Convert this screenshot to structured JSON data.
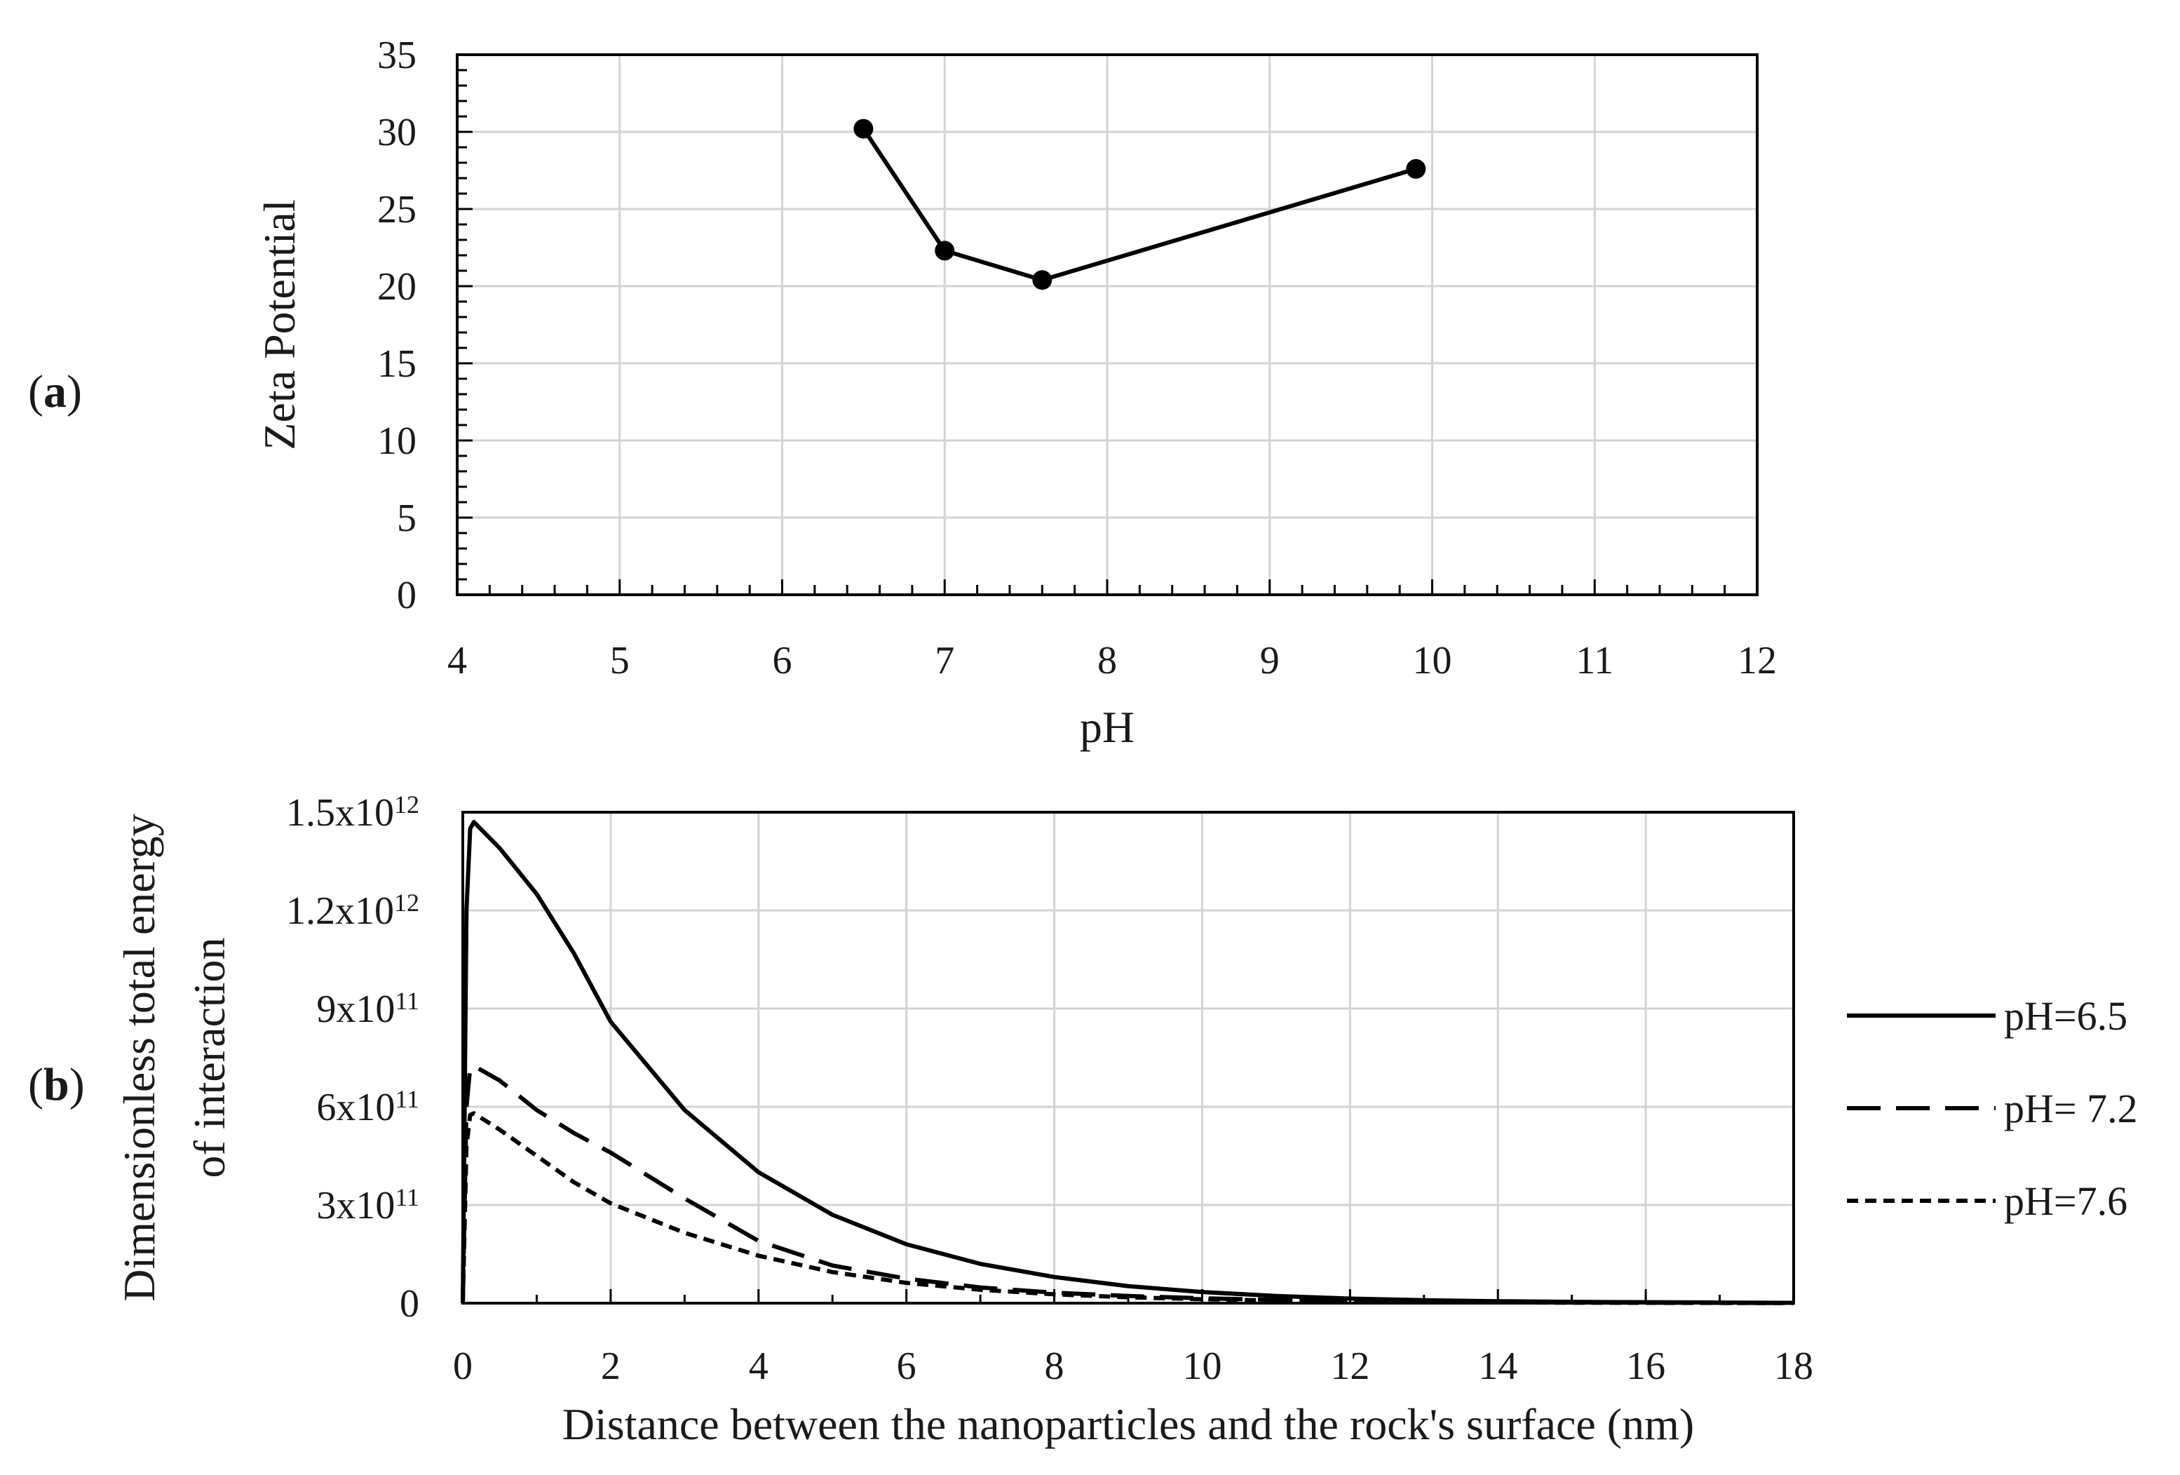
{
  "panels": {
    "a": {
      "prefix": "(",
      "letter": "a",
      "suffix": ")"
    },
    "b": {
      "prefix": "(",
      "letter": "b",
      "suffix": ")"
    }
  },
  "chart_data": [
    {
      "id": "a",
      "type": "line",
      "title": "",
      "xlabel": "pH",
      "ylabel": "Zeta Potential",
      "xlim": [
        4,
        12
      ],
      "ylim": [
        0,
        35
      ],
      "xticks": [
        4,
        5,
        6,
        7,
        8,
        9,
        10,
        11,
        12
      ],
      "yticks": [
        0,
        5,
        10,
        15,
        20,
        25,
        30,
        35
      ],
      "x_minor_step": 0.2,
      "y_minor_step": 1,
      "grid": true,
      "series": [
        {
          "name": "Zeta Potential",
          "x": [
            6.5,
            7.0,
            7.6,
            9.9
          ],
          "y": [
            30.2,
            22.3,
            20.4,
            27.6
          ],
          "color": "#000000",
          "markers": true
        }
      ]
    },
    {
      "id": "b",
      "type": "line",
      "title": "",
      "xlabel": "Distance between the nanoparticles and the rock's surface (nm)",
      "ylabel_lines": [
        "Dimensionless total energy",
        "of interaction"
      ],
      "xlim": [
        0,
        18
      ],
      "ylim": [
        0,
        1500000000000
      ],
      "xticks": [
        0,
        2,
        4,
        6,
        8,
        10,
        12,
        14,
        16,
        18
      ],
      "yticks": [
        {
          "value": 0,
          "base": "0",
          "exp": ""
        },
        {
          "value": 300000000000,
          "base": "3x10",
          "exp": "11"
        },
        {
          "value": 600000000000,
          "base": "6x10",
          "exp": "11"
        },
        {
          "value": 900000000000,
          "base": "9x10",
          "exp": "11"
        },
        {
          "value": 1200000000000,
          "base": "1.2x10",
          "exp": "12"
        },
        {
          "value": 1500000000000,
          "base": "1.5x10",
          "exp": "12"
        }
      ],
      "x_minor_step": 1,
      "grid": true,
      "legend_position": "right",
      "series": [
        {
          "name": "pH=6.5",
          "dash": "solid",
          "color": "#000000",
          "x": [
            0,
            0.05,
            0.1,
            0.15,
            0.5,
            1,
            1.5,
            2,
            3,
            4,
            5,
            6,
            7,
            8,
            9,
            10,
            11,
            12,
            13,
            14,
            15,
            16,
            17,
            18
          ],
          "y": [
            0,
            1200000000000.0,
            1450000000000.0,
            1470000000000.0,
            1390000000000.0,
            1250000000000.0,
            1070000000000.0,
            860000000000.0,
            590000000000.0,
            400000000000.0,
            270000000000.0,
            180000000000.0,
            120000000000.0,
            80000000000.0,
            52000000000.0,
            34000000000.0,
            22000000000.0,
            14000000000.0,
            9000000000.0,
            6000000000.0,
            4000000000.0,
            3000000000.0,
            2000000000.0,
            1000000000.0
          ]
        },
        {
          "name": "pH= 7.2",
          "dash": "dashed",
          "color": "#000000",
          "x": [
            0,
            0.05,
            0.1,
            0.15,
            0.5,
            1,
            1.5,
            2,
            3,
            4,
            5,
            6,
            7,
            8,
            9,
            10,
            11,
            12,
            13,
            14,
            15,
            16,
            17,
            18
          ],
          "y": [
            0,
            600000000000.0,
            720000000000.0,
            725000000000.0,
            680000000000.0,
            590000000000.0,
            520000000000.0,
            460000000000.0,
            320000000000.0,
            190000000000.0,
            115000000000.0,
            75000000000.0,
            48000000000.0,
            32000000000.0,
            22000000000.0,
            15000000000.0,
            10000000000.0,
            7000000000.0,
            5000000000.0,
            3000000000.0,
            2000000000.0,
            1500000000.0,
            1000000000.0,
            500000000.0
          ]
        },
        {
          "name": "pH=7.6",
          "dash": "dotted",
          "color": "#000000",
          "x": [
            0,
            0.05,
            0.1,
            0.15,
            0.5,
            1,
            1.5,
            2,
            3,
            4,
            5,
            6,
            7,
            8,
            9,
            10,
            11,
            12,
            13,
            14,
            15,
            16,
            17,
            18
          ],
          "y": [
            0,
            480000000000.0,
            575000000000.0,
            580000000000.0,
            530000000000.0,
            450000000000.0,
            370000000000.0,
            305000000000.0,
            215000000000.0,
            145000000000.0,
            95000000000.0,
            62000000000.0,
            41000000000.0,
            27000000000.0,
            18000000000.0,
            12000000000.0,
            8000000000.0,
            5000000000.0,
            3500000000.0,
            2500000000.0,
            1500000000.0,
            1000000000.0,
            700000000.0,
            400000000.0
          ]
        }
      ]
    }
  ]
}
